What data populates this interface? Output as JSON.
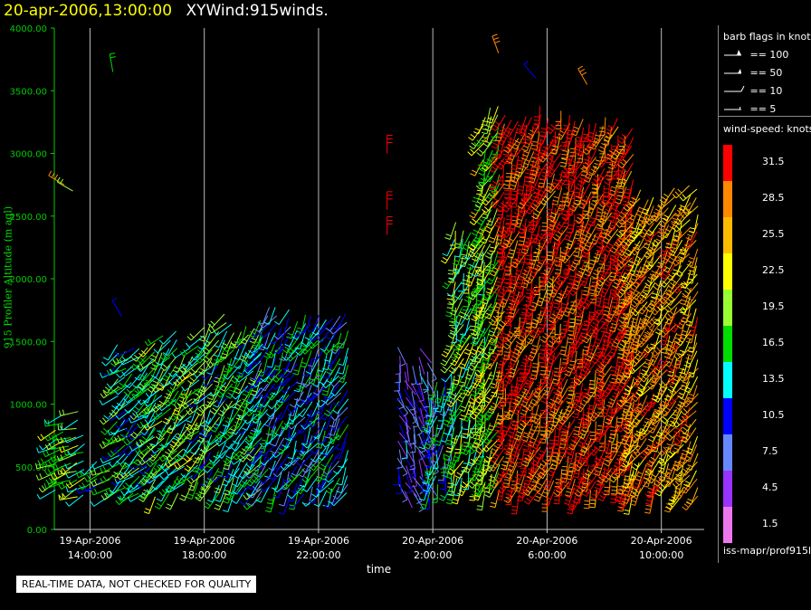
{
  "header": {
    "date_title": "20-apr-2006,13:00:00",
    "plot_name": "XYWind:915winds."
  },
  "axes": {
    "ylabel": "915 Profiler Altitude (m agl)",
    "xlabel": "time",
    "y_ticks": [
      "4000.00",
      "3500.00",
      "3000.00",
      "2500.00",
      "2000.00",
      "1500.00",
      "1000.00",
      "500.00",
      "0.00"
    ],
    "x_ticks": [
      {
        "date": "19-Apr-2006",
        "time": "14:00:00"
      },
      {
        "date": "19-Apr-2006",
        "time": "18:00:00"
      },
      {
        "date": "19-Apr-2006",
        "time": "22:00:00"
      },
      {
        "date": "20-Apr-2006",
        "time": "2:00:00"
      },
      {
        "date": "20-Apr-2006",
        "time": "6:00:00"
      },
      {
        "date": "20-Apr-2006",
        "time": "10:00:00"
      }
    ]
  },
  "notice": "REAL-TIME DATA, NOT CHECKED FOR QUALITY",
  "legend": {
    "barb_title": "barb flags in knots",
    "barb_items": [
      "== 100",
      "== 50",
      "== 10",
      "== 5"
    ],
    "speed_title": "wind-speed: knots",
    "speed_bins": [
      {
        "label": "31.5",
        "color": "#ff0000"
      },
      {
        "label": "28.5",
        "color": "#ff8800"
      },
      {
        "label": "25.5",
        "color": "#ffbb00"
      },
      {
        "label": "22.5",
        "color": "#ffff00"
      },
      {
        "label": "19.5",
        "color": "#99ff33"
      },
      {
        "label": "16.5",
        "color": "#00dd00"
      },
      {
        "label": "13.5",
        "color": "#00ffff"
      },
      {
        "label": "10.5",
        "color": "#0000ff"
      },
      {
        "label": "7.5",
        "color": "#6688ff"
      },
      {
        "label": "4.5",
        "color": "#9933ff"
      },
      {
        "label": "1.5",
        "color": "#ee77ee"
      }
    ],
    "source": "iss-mapr/prof915l"
  },
  "chart_data": {
    "type": "scatter",
    "description_of_marks": "wind barbs",
    "x_range_hours": [
      12.75,
      35.5
    ],
    "ylim": [
      0,
      4000
    ],
    "grid": "vertical lines at x ticks",
    "x_tick_hours": [
      14,
      18,
      22,
      26,
      30,
      34
    ],
    "segments": [
      {
        "start": 12.8,
        "end": 13.9,
        "top": 850,
        "speed": 18,
        "dir": 250
      },
      {
        "start": 14.2,
        "end": 14.9,
        "top": 580,
        "speed": 14,
        "dir": 240
      },
      {
        "start": 15.0,
        "end": 16.3,
        "top": 1400,
        "speed": 15,
        "dir": 230
      },
      {
        "start": 16.3,
        "end": 18.0,
        "top": 1550,
        "speed": 17,
        "dir": 220
      },
      {
        "start": 18.0,
        "end": 20.0,
        "top": 1650,
        "speed": 16,
        "dir": 215
      },
      {
        "start": 20.0,
        "end": 23.0,
        "top": 1750,
        "speed": 12,
        "dir": 210
      },
      {
        "start": 24.8,
        "end": 25.9,
        "top": 1400,
        "speed": 8,
        "dir": 160
      },
      {
        "start": 25.9,
        "end": 26.8,
        "top": 1200,
        "speed": 12,
        "dir": 190
      },
      {
        "start": 26.8,
        "end": 27.8,
        "top": 2400,
        "speed": 18,
        "dir": 200
      },
      {
        "start": 27.8,
        "end": 28.5,
        "top": 3300,
        "speed": 20,
        "dir": 205
      },
      {
        "start": 28.5,
        "end": 33.0,
        "top": 3300,
        "speed": 31,
        "dir": 200
      },
      {
        "start": 33.0,
        "end": 35.4,
        "top": 2700,
        "speed": 26,
        "dir": 210
      }
    ],
    "isolated": [
      {
        "x": 13.1,
        "y": 2750,
        "speed": 28,
        "dir": 300
      },
      {
        "x": 13.4,
        "y": 2700,
        "speed": 18,
        "dir": 300
      },
      {
        "x": 14.8,
        "y": 3650,
        "speed": 15,
        "dir": 350
      },
      {
        "x": 15.1,
        "y": 1700,
        "speed": 10,
        "dir": 330
      },
      {
        "x": 24.4,
        "y": 3000,
        "speed": 31,
        "dir": 0
      },
      {
        "x": 24.4,
        "y": 2550,
        "speed": 31,
        "dir": 0
      },
      {
        "x": 24.4,
        "y": 2350,
        "speed": 31,
        "dir": 0
      },
      {
        "x": 28.3,
        "y": 3800,
        "speed": 28,
        "dir": 340
      },
      {
        "x": 29.6,
        "y": 3600,
        "speed": 10,
        "dir": 320
      },
      {
        "x": 31.4,
        "y": 3550,
        "speed": 28,
        "dir": 330
      }
    ]
  }
}
